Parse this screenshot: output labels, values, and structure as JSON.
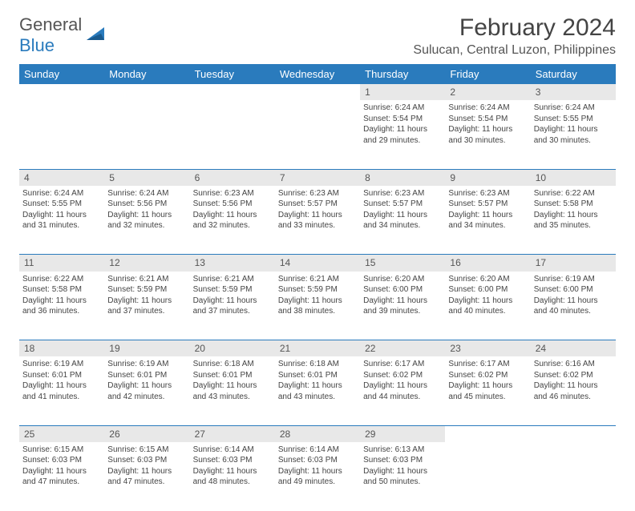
{
  "brand": {
    "general": "General",
    "blue": "Blue"
  },
  "title": "February 2024",
  "location": "Sulucan, Central Luzon, Philippines",
  "colors": {
    "header_bg": "#2a7bbd",
    "header_text": "#ffffff",
    "daynum_bg": "#e8e8e8",
    "border": "#2a7bbd",
    "text": "#444444"
  },
  "days_of_week": [
    "Sunday",
    "Monday",
    "Tuesday",
    "Wednesday",
    "Thursday",
    "Friday",
    "Saturday"
  ],
  "weeks": [
    [
      null,
      null,
      null,
      null,
      {
        "n": "1",
        "sunrise": "6:24 AM",
        "sunset": "5:54 PM",
        "daylight": "11 hours and 29 minutes."
      },
      {
        "n": "2",
        "sunrise": "6:24 AM",
        "sunset": "5:54 PM",
        "daylight": "11 hours and 30 minutes."
      },
      {
        "n": "3",
        "sunrise": "6:24 AM",
        "sunset": "5:55 PM",
        "daylight": "11 hours and 30 minutes."
      }
    ],
    [
      {
        "n": "4",
        "sunrise": "6:24 AM",
        "sunset": "5:55 PM",
        "daylight": "11 hours and 31 minutes."
      },
      {
        "n": "5",
        "sunrise": "6:24 AM",
        "sunset": "5:56 PM",
        "daylight": "11 hours and 32 minutes."
      },
      {
        "n": "6",
        "sunrise": "6:23 AM",
        "sunset": "5:56 PM",
        "daylight": "11 hours and 32 minutes."
      },
      {
        "n": "7",
        "sunrise": "6:23 AM",
        "sunset": "5:57 PM",
        "daylight": "11 hours and 33 minutes."
      },
      {
        "n": "8",
        "sunrise": "6:23 AM",
        "sunset": "5:57 PM",
        "daylight": "11 hours and 34 minutes."
      },
      {
        "n": "9",
        "sunrise": "6:23 AM",
        "sunset": "5:57 PM",
        "daylight": "11 hours and 34 minutes."
      },
      {
        "n": "10",
        "sunrise": "6:22 AM",
        "sunset": "5:58 PM",
        "daylight": "11 hours and 35 minutes."
      }
    ],
    [
      {
        "n": "11",
        "sunrise": "6:22 AM",
        "sunset": "5:58 PM",
        "daylight": "11 hours and 36 minutes."
      },
      {
        "n": "12",
        "sunrise": "6:21 AM",
        "sunset": "5:59 PM",
        "daylight": "11 hours and 37 minutes."
      },
      {
        "n": "13",
        "sunrise": "6:21 AM",
        "sunset": "5:59 PM",
        "daylight": "11 hours and 37 minutes."
      },
      {
        "n": "14",
        "sunrise": "6:21 AM",
        "sunset": "5:59 PM",
        "daylight": "11 hours and 38 minutes."
      },
      {
        "n": "15",
        "sunrise": "6:20 AM",
        "sunset": "6:00 PM",
        "daylight": "11 hours and 39 minutes."
      },
      {
        "n": "16",
        "sunrise": "6:20 AM",
        "sunset": "6:00 PM",
        "daylight": "11 hours and 40 minutes."
      },
      {
        "n": "17",
        "sunrise": "6:19 AM",
        "sunset": "6:00 PM",
        "daylight": "11 hours and 40 minutes."
      }
    ],
    [
      {
        "n": "18",
        "sunrise": "6:19 AM",
        "sunset": "6:01 PM",
        "daylight": "11 hours and 41 minutes."
      },
      {
        "n": "19",
        "sunrise": "6:19 AM",
        "sunset": "6:01 PM",
        "daylight": "11 hours and 42 minutes."
      },
      {
        "n": "20",
        "sunrise": "6:18 AM",
        "sunset": "6:01 PM",
        "daylight": "11 hours and 43 minutes."
      },
      {
        "n": "21",
        "sunrise": "6:18 AM",
        "sunset": "6:01 PM",
        "daylight": "11 hours and 43 minutes."
      },
      {
        "n": "22",
        "sunrise": "6:17 AM",
        "sunset": "6:02 PM",
        "daylight": "11 hours and 44 minutes."
      },
      {
        "n": "23",
        "sunrise": "6:17 AM",
        "sunset": "6:02 PM",
        "daylight": "11 hours and 45 minutes."
      },
      {
        "n": "24",
        "sunrise": "6:16 AM",
        "sunset": "6:02 PM",
        "daylight": "11 hours and 46 minutes."
      }
    ],
    [
      {
        "n": "25",
        "sunrise": "6:15 AM",
        "sunset": "6:03 PM",
        "daylight": "11 hours and 47 minutes."
      },
      {
        "n": "26",
        "sunrise": "6:15 AM",
        "sunset": "6:03 PM",
        "daylight": "11 hours and 47 minutes."
      },
      {
        "n": "27",
        "sunrise": "6:14 AM",
        "sunset": "6:03 PM",
        "daylight": "11 hours and 48 minutes."
      },
      {
        "n": "28",
        "sunrise": "6:14 AM",
        "sunset": "6:03 PM",
        "daylight": "11 hours and 49 minutes."
      },
      {
        "n": "29",
        "sunrise": "6:13 AM",
        "sunset": "6:03 PM",
        "daylight": "11 hours and 50 minutes."
      },
      null,
      null
    ]
  ],
  "labels": {
    "sunrise": "Sunrise: ",
    "sunset": "Sunset: ",
    "daylight": "Daylight: "
  }
}
